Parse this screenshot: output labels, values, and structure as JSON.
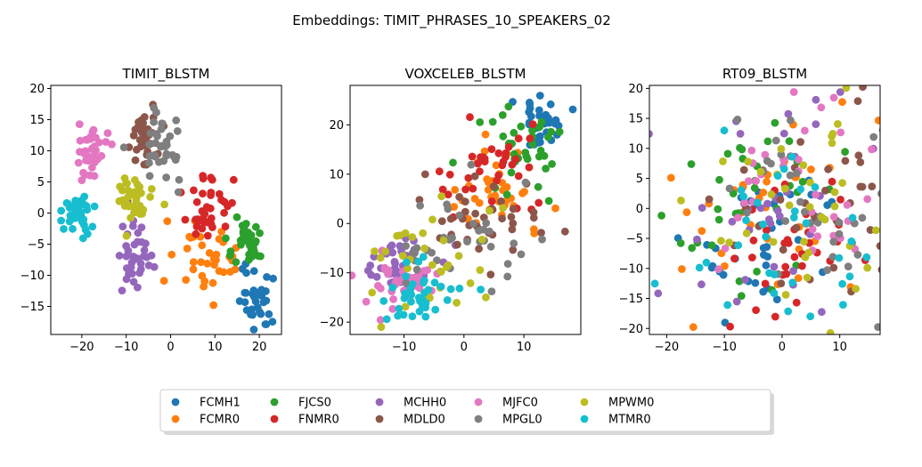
{
  "figure": {
    "suptitle": "Embeddings: TIMIT_PHRASES_10_SPEAKERS_02"
  },
  "speakers": [
    {
      "name": "FCMH1",
      "color": "#1f77b4"
    },
    {
      "name": "FCMR0",
      "color": "#ff7f0e"
    },
    {
      "name": "FJCS0",
      "color": "#2ca02c"
    },
    {
      "name": "FNMR0",
      "color": "#d62728"
    },
    {
      "name": "MCHH0",
      "color": "#9467bd"
    },
    {
      "name": "MDLD0",
      "color": "#8c564b"
    },
    {
      "name": "MJFC0",
      "color": "#e377c2"
    },
    {
      "name": "MPGL0",
      "color": "#7f7f7f"
    },
    {
      "name": "MPWM0",
      "color": "#bcbd22"
    },
    {
      "name": "MTMR0",
      "color": "#17becf"
    }
  ],
  "chart_data": [
    {
      "type": "scatter",
      "title": "TIMIT_BLSTM",
      "xlim": [
        -27,
        25
      ],
      "ylim": [
        -19.5,
        20.5
      ],
      "xticks": [
        -20,
        -10,
        0,
        10,
        20
      ],
      "yticks": [
        -15,
        -10,
        -5,
        0,
        5,
        10,
        15,
        20
      ],
      "clusters": [
        {
          "speaker": "FCMH1",
          "cx": 19,
          "cy": -14,
          "sx": 2,
          "sy": 3,
          "n": 36
        },
        {
          "speaker": "FCMR0",
          "cx": 7,
          "cy": -8,
          "sx": 5,
          "sy": 3,
          "n": 36
        },
        {
          "speaker": "FJCS0",
          "cx": 17,
          "cy": -5,
          "sx": 2.5,
          "sy": 2,
          "n": 36
        },
        {
          "speaker": "FNMR0",
          "cx": 9,
          "cy": 0,
          "sx": 3,
          "sy": 2.5,
          "n": 36
        },
        {
          "speaker": "MCHH0",
          "cx": -8,
          "cy": -8,
          "sx": 2,
          "sy": 3,
          "n": 36
        },
        {
          "speaker": "MDLD0",
          "cx": -6,
          "cy": 12,
          "sx": 2,
          "sy": 2.5,
          "n": 36
        },
        {
          "speaker": "MJFC0",
          "cx": -18,
          "cy": 10,
          "sx": 2,
          "sy": 2,
          "n": 36
        },
        {
          "speaker": "MPGL0",
          "cx": -2,
          "cy": 10,
          "sx": 2.5,
          "sy": 3,
          "n": 36
        },
        {
          "speaker": "MPWM0",
          "cx": -8,
          "cy": 2,
          "sx": 2,
          "sy": 2,
          "n": 36
        },
        {
          "speaker": "MTMR0",
          "cx": -21,
          "cy": 0,
          "sx": 2,
          "sy": 2,
          "n": 36
        }
      ]
    },
    {
      "type": "scatter",
      "title": "VOXCELEB_BLSTM",
      "xlim": [
        -19,
        19.5
      ],
      "ylim": [
        -22.5,
        28
      ],
      "xticks": [
        -10,
        0,
        10
      ],
      "yticks": [
        -20,
        -10,
        0,
        10,
        20
      ],
      "clusters": [
        {
          "speaker": "FCMH1",
          "cx": 13,
          "cy": 21,
          "sx": 2,
          "sy": 3,
          "n": 36
        },
        {
          "speaker": "FCMR0",
          "cx": 5,
          "cy": 6,
          "sx": 3.5,
          "sy": 6,
          "n": 36
        },
        {
          "speaker": "FJCS0",
          "cx": 10,
          "cy": 15,
          "sx": 4,
          "sy": 5,
          "n": 36
        },
        {
          "speaker": "FNMR0",
          "cx": 5,
          "cy": 10,
          "sx": 4,
          "sy": 5,
          "n": 36
        },
        {
          "speaker": "MCHH0",
          "cx": -11,
          "cy": -9,
          "sx": 3,
          "sy": 3,
          "n": 36
        },
        {
          "speaker": "MDLD0",
          "cx": 3,
          "cy": 0,
          "sx": 5,
          "sy": 5,
          "n": 36
        },
        {
          "speaker": "MJFC0",
          "cx": -10,
          "cy": -12,
          "sx": 4,
          "sy": 3,
          "n": 36
        },
        {
          "speaker": "MPGL0",
          "cx": 0,
          "cy": -5,
          "sx": 6,
          "sy": 6,
          "n": 36
        },
        {
          "speaker": "MPWM0",
          "cx": -6,
          "cy": -8,
          "sx": 7,
          "sy": 6,
          "n": 36
        },
        {
          "speaker": "MTMR0",
          "cx": -8,
          "cy": -15,
          "sx": 4,
          "sy": 3,
          "n": 36
        }
      ]
    },
    {
      "type": "scatter",
      "title": "RT09_BLSTM",
      "xlim": [
        -23,
        17
      ],
      "ylim": [
        -21,
        20.5
      ],
      "xticks": [
        -20,
        -10,
        0,
        10
      ],
      "yticks": [
        -20,
        -15,
        -10,
        -5,
        0,
        5,
        10,
        15,
        20
      ],
      "clusters": [
        {
          "speaker": "FCMH1",
          "cx": -3,
          "cy": -5,
          "sx": 7,
          "sy": 6,
          "n": 36
        },
        {
          "speaker": "FCMR0",
          "cx": -2,
          "cy": -2,
          "sx": 9,
          "sy": 10,
          "n": 36
        },
        {
          "speaker": "FJCS0",
          "cx": -6,
          "cy": -1,
          "sx": 8,
          "sy": 6,
          "n": 36
        },
        {
          "speaker": "FNMR0",
          "cx": 2,
          "cy": -10,
          "sx": 5,
          "sy": 6,
          "n": 36
        },
        {
          "speaker": "MCHH0",
          "cx": -1,
          "cy": 2,
          "sx": 8,
          "sy": 9,
          "n": 36
        },
        {
          "speaker": "MDLD0",
          "cx": 6,
          "cy": 0,
          "sx": 9,
          "sy": 9,
          "n": 36
        },
        {
          "speaker": "MJFC0",
          "cx": 3,
          "cy": 4,
          "sx": 7,
          "sy": 8,
          "n": 36
        },
        {
          "speaker": "MPGL0",
          "cx": 5,
          "cy": 0,
          "sx": 8,
          "sy": 9,
          "n": 36
        },
        {
          "speaker": "MPWM0",
          "cx": 4,
          "cy": 2,
          "sx": 8,
          "sy": 9,
          "n": 36
        },
        {
          "speaker": "MTMR0",
          "cx": 0,
          "cy": -6,
          "sx": 9,
          "sy": 8,
          "n": 36
        }
      ]
    }
  ]
}
